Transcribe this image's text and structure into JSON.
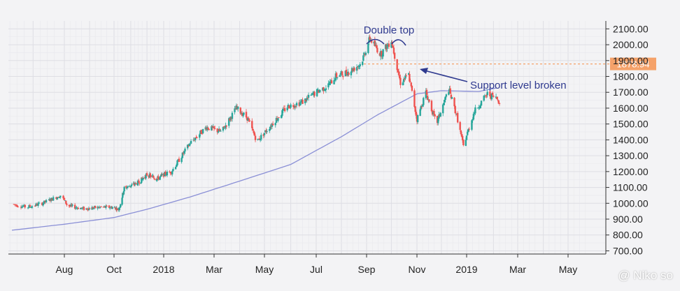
{
  "chart_data": {
    "type": "candlestick",
    "x_ticks": [
      "Aug",
      "Oct",
      "2018",
      "Mar",
      "May",
      "Jul",
      "Sep",
      "Nov",
      "2019",
      "Mar",
      "May"
    ],
    "y_ticks": [
      "700.00",
      "800.00",
      "900.00",
      "1000.00",
      "1100.00",
      "1200.00",
      "1300.00",
      "1400.00",
      "1500.00",
      "1600.00",
      "1700.00",
      "1800.00",
      "1900.00",
      "2000.00",
      "2100.00"
    ],
    "ylim": [
      680,
      2150
    ],
    "price_line": {
      "value": 1878.94,
      "label": "1878.94",
      "color": "#f5a26a"
    },
    "moving_average": {
      "color": "#8a8fd6",
      "values": [
        {
          "x": "2017-06-10",
          "y": 830
        },
        {
          "x": "2017-08-01",
          "y": 868
        },
        {
          "x": "2017-10-01",
          "y": 910
        },
        {
          "x": "2017-12-01",
          "y": 962
        },
        {
          "x": "2018-02-01",
          "y": 1040
        },
        {
          "x": "2018-04-01",
          "y": 1140
        },
        {
          "x": "2018-06-01",
          "y": 1245
        },
        {
          "x": "2018-08-01",
          "y": 1420
        },
        {
          "x": "2018-09-15",
          "y": 1560
        },
        {
          "x": "2018-11-01",
          "y": 1690
        },
        {
          "x": "2018-12-01",
          "y": 1710
        },
        {
          "x": "2019-01-15",
          "y": 1705
        },
        {
          "x": "2019-02-05",
          "y": 1728
        }
      ]
    },
    "price_path": [
      {
        "x": "2017-06-10",
        "y": 995
      },
      {
        "x": "2017-06-25",
        "y": 975
      },
      {
        "x": "2017-07-10",
        "y": 1000
      },
      {
        "x": "2017-07-28",
        "y": 1050
      },
      {
        "x": "2017-08-05",
        "y": 985
      },
      {
        "x": "2017-08-25",
        "y": 965
      },
      {
        "x": "2017-09-15",
        "y": 975
      },
      {
        "x": "2017-10-01",
        "y": 975
      },
      {
        "x": "2017-10-10",
        "y": 960
      },
      {
        "x": "2017-10-20",
        "y": 1095
      },
      {
        "x": "2017-11-15",
        "y": 1130
      },
      {
        "x": "2017-12-01",
        "y": 1180
      },
      {
        "x": "2017-12-20",
        "y": 1155
      },
      {
        "x": "2018-01-10",
        "y": 1200
      },
      {
        "x": "2018-02-01",
        "y": 1380
      },
      {
        "x": "2018-02-20",
        "y": 1480
      },
      {
        "x": "2018-03-10",
        "y": 1450
      },
      {
        "x": "2018-03-28",
        "y": 1600
      },
      {
        "x": "2018-04-10",
        "y": 1540
      },
      {
        "x": "2018-04-22",
        "y": 1390
      },
      {
        "x": "2018-05-10",
        "y": 1500
      },
      {
        "x": "2018-05-28",
        "y": 1610
      },
      {
        "x": "2018-06-15",
        "y": 1640
      },
      {
        "x": "2018-07-01",
        "y": 1700
      },
      {
        "x": "2018-07-15",
        "y": 1740
      },
      {
        "x": "2018-07-25",
        "y": 1800
      },
      {
        "x": "2018-08-10",
        "y": 1830
      },
      {
        "x": "2018-08-25",
        "y": 1880
      },
      {
        "x": "2018-09-05",
        "y": 2040
      },
      {
        "x": "2018-09-18",
        "y": 1940
      },
      {
        "x": "2018-10-01",
        "y": 2030
      },
      {
        "x": "2018-10-12",
        "y": 1760
      },
      {
        "x": "2018-10-22",
        "y": 1810
      },
      {
        "x": "2018-11-01",
        "y": 1530
      },
      {
        "x": "2018-11-12",
        "y": 1700
      },
      {
        "x": "2018-11-25",
        "y": 1500
      },
      {
        "x": "2018-12-10",
        "y": 1720
      },
      {
        "x": "2018-12-20",
        "y": 1550
      },
      {
        "x": "2018-12-28",
        "y": 1360
      },
      {
        "x": "2019-01-10",
        "y": 1580
      },
      {
        "x": "2019-01-25",
        "y": 1690
      },
      {
        "x": "2019-02-05",
        "y": 1660
      },
      {
        "x": "2019-02-10",
        "y": 1630
      }
    ],
    "annotations": [
      {
        "text": "Double top"
      },
      {
        "text": "Support level broken"
      }
    ],
    "up_color": "#26a69a",
    "down_color": "#ef5350",
    "watermark": "@ Niko so"
  }
}
